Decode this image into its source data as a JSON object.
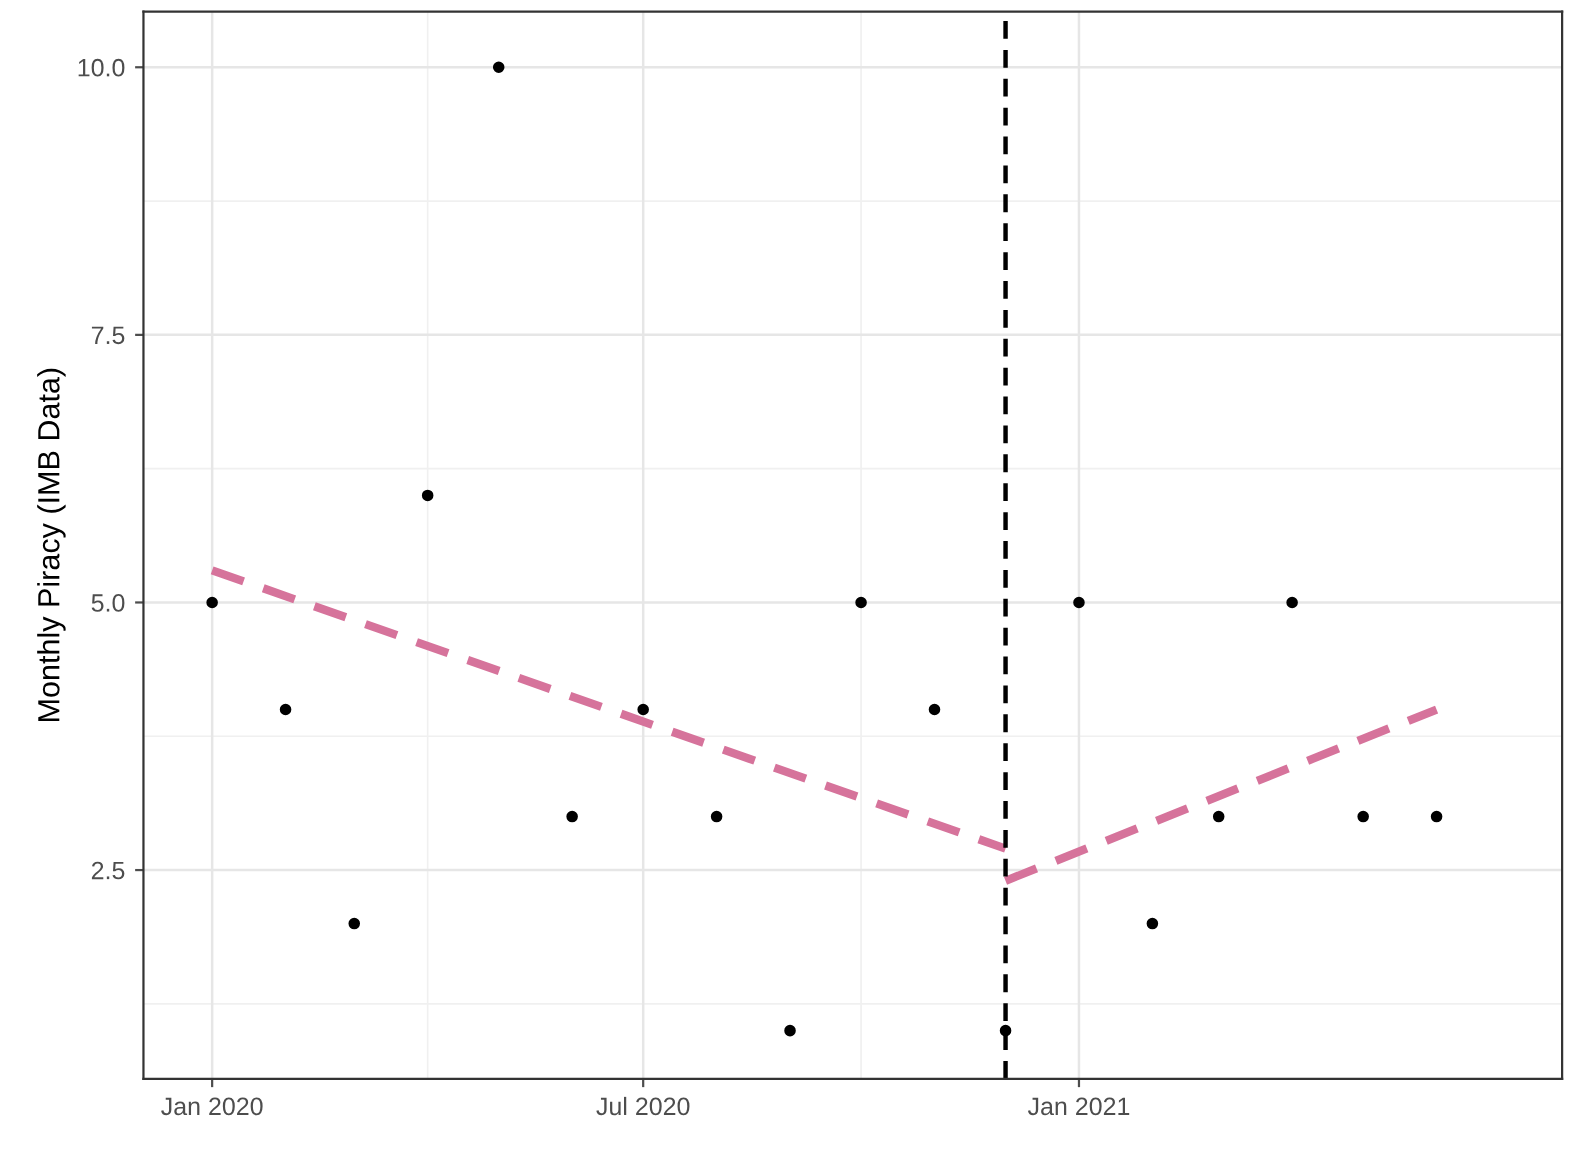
{
  "chart_data": {
    "type": "scatter",
    "ylabel": "Monthly Piracy (IMB Data)",
    "x": [
      "2020-01-01",
      "2020-02-01",
      "2020-03-01",
      "2020-04-01",
      "2020-05-01",
      "2020-06-01",
      "2020-07-01",
      "2020-08-01",
      "2020-09-01",
      "2020-10-01",
      "2020-11-01",
      "2020-12-01",
      "2021-01-01",
      "2021-02-01",
      "2021-03-01",
      "2021-04-01",
      "2021-05-01",
      "2021-06-01"
    ],
    "series": [
      {
        "color": "#000000",
        "marker": "circle",
        "values": [
          5,
          4,
          2,
          6,
          10,
          3,
          4,
          3,
          1,
          5,
          4,
          1,
          5,
          2,
          3,
          5,
          3,
          3
        ]
      },
      {
        "type": "line",
        "color": "#d6739b",
        "line_style": "dashed",
        "x": [
          "2020-01-01",
          "2020-12-01"
        ],
        "values": [
          5.3,
          2.7
        ]
      },
      {
        "type": "line",
        "color": "#d6739b",
        "line_style": "dashed",
        "x": [
          "2020-12-01",
          "2021-06-01"
        ],
        "values": [
          2.4,
          4.0
        ]
      }
    ],
    "ref_lines": [
      {
        "axis": "x",
        "value": "2020-12-01",
        "label": null,
        "color": "#000000",
        "line_style": "dashed"
      }
    ],
    "xlim": [
      "2019-12-03",
      "2021-07-24"
    ],
    "xticks": [
      {
        "value": "2020-01-01",
        "label": "Jan 2020"
      },
      {
        "value": "2020-07-01",
        "label": "Jul 2020"
      },
      {
        "value": "2021-01-01",
        "label": "Jan 2021"
      }
    ],
    "ylim": [
      0.55,
      10.52
    ],
    "yticks": [
      {
        "value": 2.5,
        "label": "2.5"
      },
      {
        "value": 5,
        "label": "5.0"
      },
      {
        "value": 7.5,
        "label": "7.5"
      },
      {
        "value": 10,
        "label": "10.0"
      }
    ],
    "grid": true
  }
}
